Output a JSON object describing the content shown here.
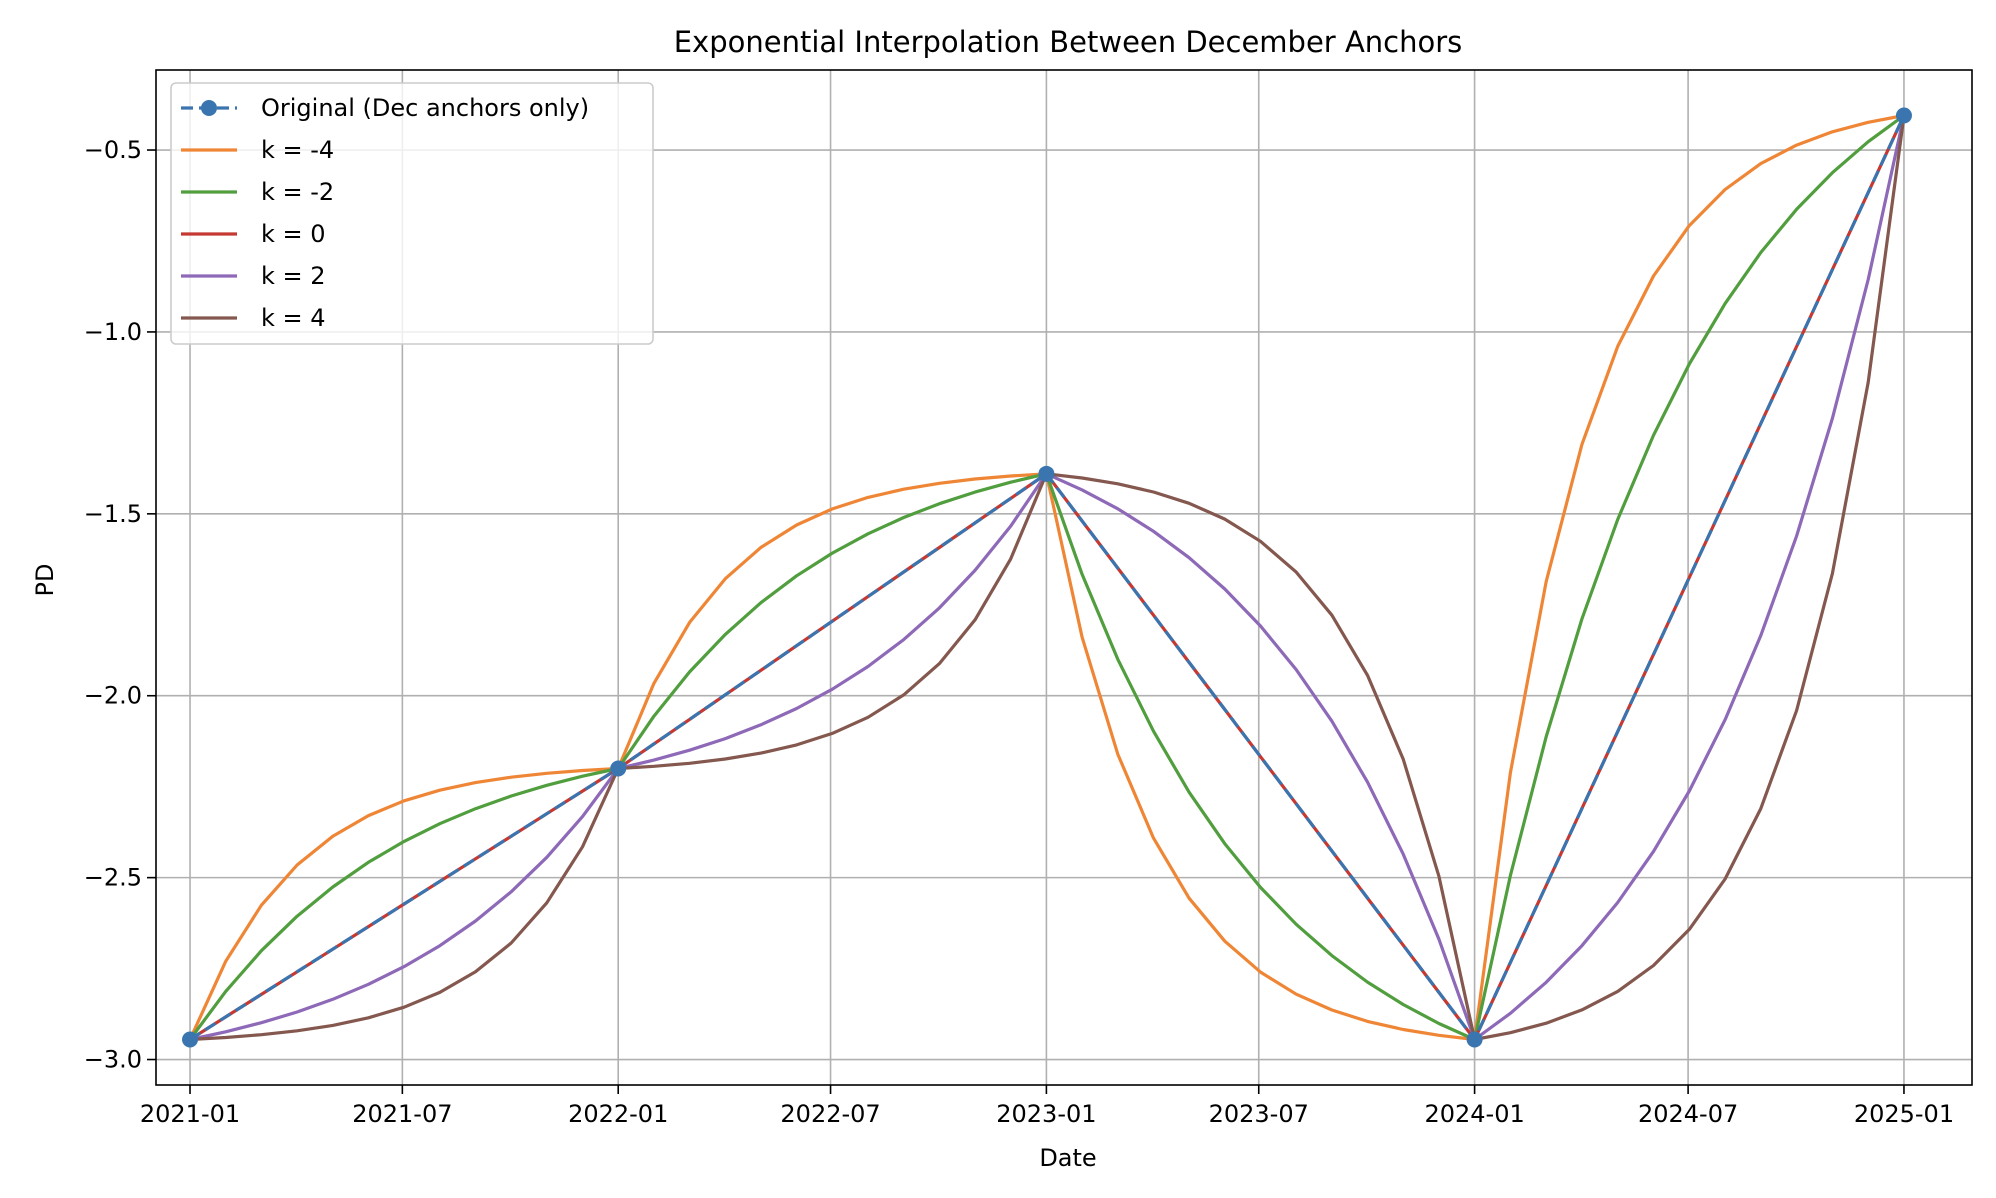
{
  "chart_data": {
    "type": "line",
    "title": "Exponential Interpolation Between December Anchors",
    "xlabel": "Date",
    "ylabel": "PD",
    "x_ticks": [
      "2021-01",
      "2021-07",
      "2022-01",
      "2022-07",
      "2023-01",
      "2023-07",
      "2024-01",
      "2024-07",
      "2025-01"
    ],
    "y_ticks": [
      "−3.0",
      "−2.5",
      "−2.0",
      "−1.5",
      "−1.0",
      "−0.5"
    ],
    "xlim": [
      "2020-12-03",
      "2025-02-28"
    ],
    "ylim": [
      -3.07,
      -0.28
    ],
    "grid": true,
    "legend_position": "top-left",
    "anchors": {
      "name": "Original (Dec anchors only)",
      "color": "#3a75b0",
      "style": "dashed-with-markers",
      "points": [
        {
          "date": "2021-01-01",
          "value": -2.945
        },
        {
          "date": "2022-01-01",
          "value": -2.2
        },
        {
          "date": "2023-01-01",
          "value": -1.39
        },
        {
          "date": "2024-01-01",
          "value": -2.945
        },
        {
          "date": "2025-01-01",
          "value": -0.405
        }
      ]
    },
    "series": [
      {
        "name": "k = -4",
        "k": -4,
        "color": "#ef8636"
      },
      {
        "name": "k = -2",
        "k": -2,
        "color": "#519e3e"
      },
      {
        "name": "k = 0",
        "k": 0,
        "color": "#c53932"
      },
      {
        "name": "k = 2",
        "k": 2,
        "color": "#8d69b8"
      },
      {
        "name": "k = 4",
        "k": 4,
        "color": "#84584e"
      }
    ]
  }
}
